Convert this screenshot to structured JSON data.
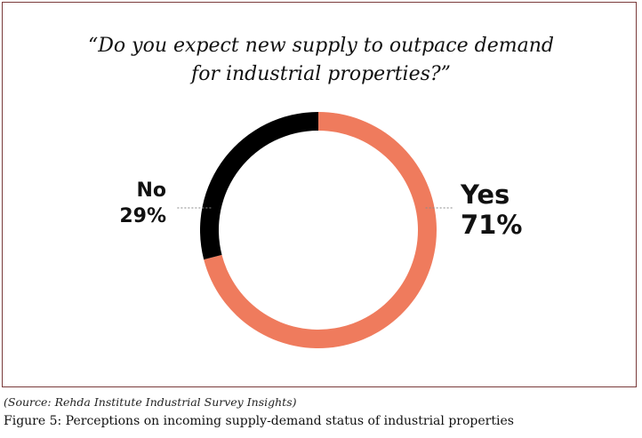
{
  "question": {
    "line1": "“Do you expect new supply to outpace demand",
    "line2": "for industrial properties?”"
  },
  "chart_data": {
    "type": "pie",
    "variant": "donut",
    "title": "“Do you expect new supply to outpace demand for industrial properties?”",
    "slices": [
      {
        "label": "Yes",
        "value": 71,
        "display": "71%",
        "color": "#ef7b5d"
      },
      {
        "label": "No",
        "value": 29,
        "display": "29%",
        "color": "#000000"
      }
    ],
    "start_angle_deg": 0,
    "direction": "clockwise"
  },
  "source": "(Source: Rehda Institute Industrial Survey Insights)",
  "caption": "Figure 5: Perceptions on incoming supply-demand status of industrial properties"
}
